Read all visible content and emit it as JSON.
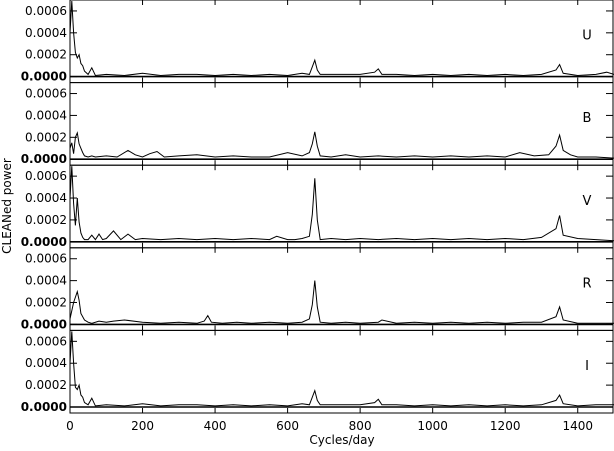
{
  "chart_data": {
    "type": "line",
    "xlabel": "Cycles/day",
    "ylabel": "CLEANed  power",
    "xlim": [
      0,
      1500
    ],
    "ylim": [
      0,
      0.0007
    ],
    "xticks": [
      0,
      200,
      400,
      600,
      800,
      1000,
      1200,
      1400
    ],
    "xtick_labels": [
      "0",
      "200",
      "400",
      "600",
      "800",
      "1000",
      "1200",
      "1400"
    ],
    "yticks": [
      0,
      0.0002,
      0.0004,
      0.0006
    ],
    "ytick_labels": [
      "0.0000",
      "0.0002",
      "0.0004",
      "0.0006"
    ],
    "grid": false,
    "panels": [
      {
        "label": "U",
        "series": [
          {
            "x": [
              0,
              5,
              10,
              15,
              20,
              25,
              30,
              35,
              40,
              50,
              60,
              70,
              100,
              150,
              200,
              250,
              300,
              350,
              400,
              450,
              500,
              550,
              600,
              640,
              660,
              668,
              675,
              682,
              690,
              720,
              760,
              800,
              840,
              850,
              860,
              900,
              950,
              1000,
              1050,
              1100,
              1150,
              1200,
              1250,
              1300,
              1340,
              1350,
              1360,
              1400,
              1450,
              1480,
              1500
            ],
            "y": [
              0.0004,
              0.0007,
              0.0004,
              0.00022,
              0.00017,
              0.0002,
              0.00012,
              0.0001,
              5e-05,
              2e-05,
              8e-05,
              1e-05,
              2e-05,
              1e-05,
              3e-05,
              1e-05,
              2e-05,
              2e-05,
              1e-05,
              2e-05,
              1e-05,
              2e-05,
              1e-05,
              3e-05,
              2e-05,
              9e-05,
              0.00015,
              6e-05,
              2e-05,
              2e-05,
              2e-05,
              2e-05,
              4e-05,
              7e-05,
              2e-05,
              2e-05,
              1e-05,
              2e-05,
              1e-05,
              2e-05,
              1e-05,
              2e-05,
              1e-05,
              2e-05,
              6e-05,
              0.00011,
              3e-05,
              1e-05,
              2e-05,
              4e-05,
              2e-05
            ]
          }
        ]
      },
      {
        "label": "B",
        "series": [
          {
            "x": [
              0,
              5,
              10,
              15,
              20,
              25,
              30,
              35,
              40,
              50,
              60,
              70,
              100,
              130,
              160,
              180,
              200,
              220,
              240,
              260,
              300,
              350,
              400,
              450,
              500,
              550,
              600,
              640,
              660,
              668,
              675,
              682,
              690,
              720,
              760,
              800,
              850,
              900,
              950,
              1000,
              1050,
              1100,
              1150,
              1200,
              1240,
              1280,
              1320,
              1340,
              1350,
              1360,
              1380,
              1400,
              1450,
              1500
            ],
            "y": [
              0.0001,
              0.00015,
              5e-05,
              0.0002,
              0.00024,
              0.00014,
              0.0001,
              6e-05,
              3e-05,
              2e-05,
              3e-05,
              2e-05,
              3e-05,
              2e-05,
              8e-05,
              4e-05,
              2e-05,
              5e-05,
              7e-05,
              2e-05,
              3e-05,
              4e-05,
              2e-05,
              3e-05,
              2e-05,
              2e-05,
              6e-05,
              3e-05,
              6e-05,
              0.00014,
              0.00025,
              0.00012,
              3e-05,
              2e-05,
              4e-05,
              2e-05,
              3e-05,
              2e-05,
              3e-05,
              2e-05,
              3e-05,
              2e-05,
              3e-05,
              2e-05,
              6e-05,
              3e-05,
              4e-05,
              0.00012,
              0.00022,
              8e-05,
              4e-05,
              2e-05,
              2e-05,
              1e-05
            ]
          }
        ]
      },
      {
        "label": "V",
        "series": [
          {
            "x": [
              0,
              5,
              10,
              15,
              20,
              25,
              30,
              35,
              40,
              50,
              60,
              70,
              80,
              90,
              100,
              120,
              140,
              160,
              180,
              200,
              250,
              300,
              350,
              400,
              450,
              500,
              550,
              570,
              600,
              620,
              640,
              660,
              668,
              675,
              682,
              690,
              720,
              760,
              800,
              850,
              900,
              950,
              1000,
              1050,
              1100,
              1150,
              1200,
              1250,
              1300,
              1340,
              1350,
              1360,
              1400,
              1450,
              1500
            ],
            "y": [
              0.0004,
              0.0007,
              0.00035,
              0.00015,
              0.0004,
              0.00018,
              8e-05,
              4e-05,
              2e-05,
              2e-05,
              6e-05,
              2e-05,
              7e-05,
              2e-05,
              3e-05,
              0.0001,
              2e-05,
              7e-05,
              2e-05,
              3e-05,
              2e-05,
              3e-05,
              2e-05,
              3e-05,
              2e-05,
              3e-05,
              2e-05,
              5e-05,
              2e-05,
              2e-05,
              3e-05,
              5e-05,
              0.00025,
              0.00058,
              0.0002,
              2e-05,
              3e-05,
              2e-05,
              3e-05,
              2e-05,
              3e-05,
              2e-05,
              3e-05,
              2e-05,
              3e-05,
              2e-05,
              3e-05,
              2e-05,
              4e-05,
              0.00012,
              0.00024,
              6e-05,
              3e-05,
              2e-05,
              1e-05
            ]
          }
        ]
      },
      {
        "label": "R",
        "series": [
          {
            "x": [
              0,
              10,
              20,
              25,
              30,
              40,
              50,
              60,
              80,
              100,
              120,
              150,
              200,
              250,
              300,
              350,
              370,
              380,
              390,
              420,
              460,
              500,
              550,
              600,
              640,
              660,
              668,
              675,
              682,
              690,
              720,
              760,
              800,
              850,
              860,
              900,
              950,
              1000,
              1050,
              1100,
              1150,
              1200,
              1250,
              1300,
              1340,
              1350,
              1360,
              1400,
              1450,
              1500
            ],
            "y": [
              5e-05,
              0.0002,
              0.0003,
              0.00022,
              0.0001,
              4e-05,
              2e-05,
              1e-05,
              3e-05,
              2e-05,
              3e-05,
              4e-05,
              2e-05,
              1e-05,
              2e-05,
              1e-05,
              3e-05,
              8e-05,
              2e-05,
              1e-05,
              2e-05,
              1e-05,
              2e-05,
              1e-05,
              2e-05,
              5e-05,
              0.00018,
              0.0004,
              0.00016,
              2e-05,
              1e-05,
              2e-05,
              1e-05,
              2e-05,
              4e-05,
              1e-05,
              2e-05,
              1e-05,
              2e-05,
              1e-05,
              2e-05,
              1e-05,
              2e-05,
              2e-05,
              7e-05,
              0.00016,
              4e-05,
              1e-05,
              1e-05,
              1e-05
            ]
          }
        ]
      },
      {
        "label": "I",
        "series": [
          {
            "x": [
              0,
              5,
              10,
              15,
              20,
              25,
              30,
              35,
              40,
              50,
              60,
              70,
              100,
              150,
              200,
              250,
              300,
              350,
              400,
              450,
              500,
              550,
              600,
              640,
              660,
              668,
              675,
              682,
              690,
              720,
              760,
              800,
              840,
              850,
              860,
              900,
              950,
              1000,
              1050,
              1100,
              1150,
              1200,
              1250,
              1300,
              1340,
              1350,
              1360,
              1400,
              1450,
              1500
            ],
            "y": [
              0.0004,
              0.0007,
              0.0004,
              0.00018,
              0.00016,
              0.0002,
              0.00011,
              9e-05,
              4e-05,
              2e-05,
              8e-05,
              1e-05,
              2e-05,
              1e-05,
              3e-05,
              1e-05,
              2e-05,
              2e-05,
              1e-05,
              2e-05,
              1e-05,
              2e-05,
              1e-05,
              3e-05,
              2e-05,
              9e-05,
              0.00015,
              6e-05,
              2e-05,
              2e-05,
              2e-05,
              2e-05,
              4e-05,
              7e-05,
              2e-05,
              2e-05,
              1e-05,
              2e-05,
              1e-05,
              2e-05,
              1e-05,
              2e-05,
              1e-05,
              2e-05,
              6e-05,
              0.00011,
              3e-05,
              1e-05,
              2e-05,
              2e-05
            ]
          }
        ]
      }
    ]
  }
}
